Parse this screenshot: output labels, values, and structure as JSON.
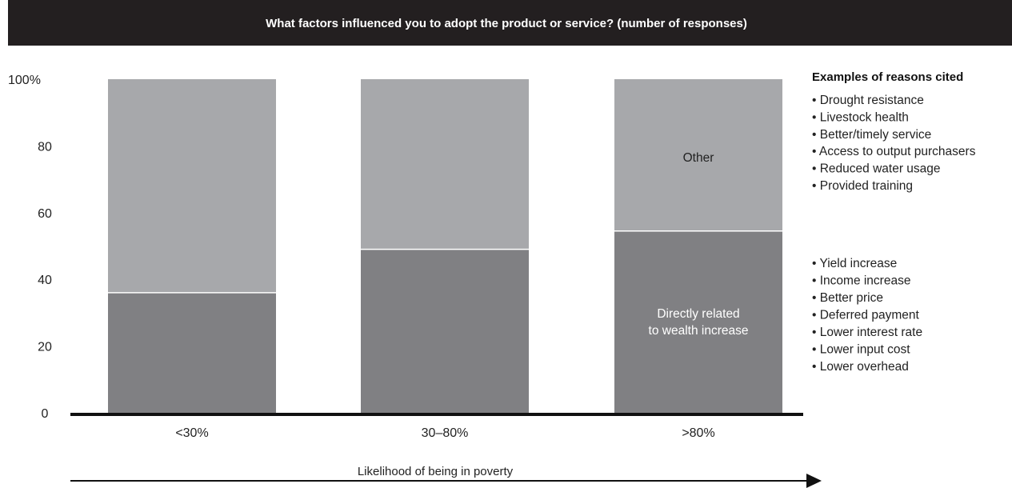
{
  "colors": {
    "title_bg": "#231f20",
    "bottom_segment": "#808083",
    "top_segment": "#a7a8ab",
    "axis": "#111111"
  },
  "chart_data": {
    "type": "bar",
    "stacked": true,
    "title": "What factors influenced you to adopt the product or service? (number of responses)",
    "xlabel": "Likelihood of being in poverty",
    "ylabel": "",
    "ylim": [
      0,
      100
    ],
    "yticks": [
      "0",
      "20",
      "40",
      "60",
      "80",
      "100%"
    ],
    "categories": [
      "<30%",
      "30–80%",
      ">80%"
    ],
    "series": [
      {
        "name": "Directly related to wealth increase",
        "values": [
          36,
          49,
          54.5
        ],
        "color": "#808083"
      },
      {
        "name": "Other",
        "values": [
          64,
          51,
          45.5
        ],
        "color": "#a7a8ab"
      }
    ],
    "segment_labels": {
      "bottom": [
        "Directly related",
        "to wealth increase"
      ],
      "top": [
        "Other"
      ]
    },
    "grid": false,
    "legend": "none"
  },
  "side_panel": {
    "heading": "Examples of reasons cited",
    "other_reasons": [
      "• Drought resistance",
      "• Livestock health",
      "• Better/timely service",
      "• Access to output purchasers",
      "• Reduced water usage",
      "• Provided training"
    ],
    "wealth_reasons": [
      "• Yield increase",
      "• Income increase",
      "• Better price",
      "• Deferred payment",
      "• Lower interest rate",
      "• Lower input cost",
      "• Lower overhead"
    ]
  }
}
